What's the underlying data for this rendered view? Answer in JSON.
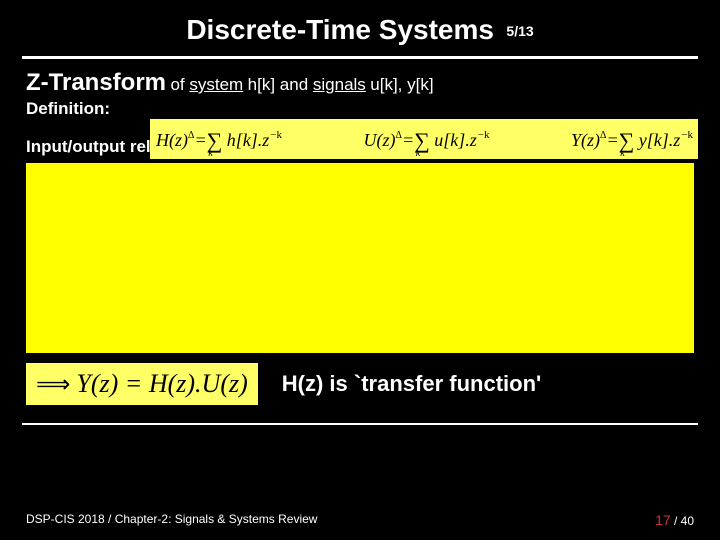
{
  "title": "Discrete-Time Systems",
  "page_small": "5/13",
  "subtitle": {
    "zt": "Z-Transform",
    "of": " of ",
    "system": "system",
    "hk": " h[k] and ",
    "signals": "signals",
    "uy": " u[k], y[k]"
  },
  "definition_label": "Definition:",
  "eq": {
    "H": "H",
    "U": "U",
    "Y": "Y",
    "hl": "h",
    "ul": "u",
    "yl": "y",
    "z": "z",
    "k": "k",
    "negk": "−k"
  },
  "io_label": "Input/output relation:",
  "result": "Y(z) = H(z).U(z)",
  "transfer": "H(z) is `transfer function'",
  "footer_left": "DSP-CIS 2018  /  Chapter-2: Signals & Systems Review",
  "footer_right_a": "17",
  "footer_right_b": " / 40",
  "colors": {
    "bg": "#000000",
    "text": "#ffffff",
    "highlight": "#ffff66",
    "bigblock": "#ffff00",
    "accent": "#cc3333"
  }
}
